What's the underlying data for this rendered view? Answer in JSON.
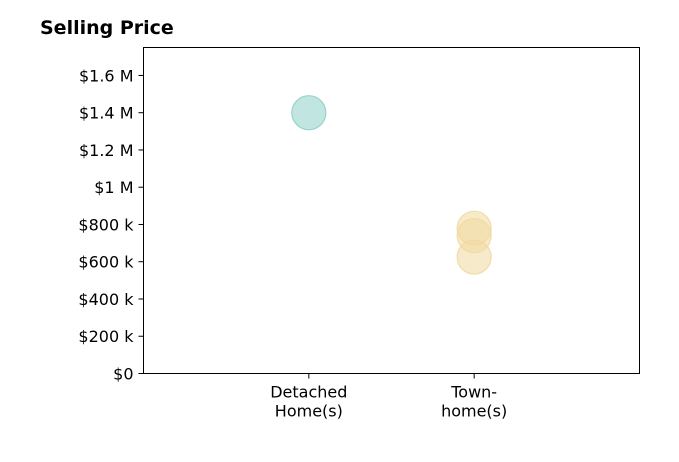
{
  "chart_data": {
    "type": "scatter",
    "title": "Selling Price",
    "xlabel": "",
    "ylabel": "",
    "categories": [
      [
        "Detached",
        "Home(s)"
      ],
      [
        "Town-",
        "home(s)"
      ]
    ],
    "y_ticks": [
      {
        "value": 0,
        "label": "$0"
      },
      {
        "value": 200000,
        "label": "$200 k"
      },
      {
        "value": 400000,
        "label": "$400 k"
      },
      {
        "value": 600000,
        "label": "$600 k"
      },
      {
        "value": 800000,
        "label": "$800 k"
      },
      {
        "value": 1000000,
        "label": "$1 M"
      },
      {
        "value": 1200000,
        "label": "$1.2 M"
      },
      {
        "value": 1400000,
        "label": "$1.4 M"
      },
      {
        "value": 1600000,
        "label": "$1.6 M"
      }
    ],
    "ylim": [
      0,
      1750000
    ],
    "xlim": [
      -1,
      2
    ],
    "grid": false,
    "points": [
      {
        "category": 0,
        "value": 1400000,
        "color": "#8ecfc9"
      },
      {
        "category": 1,
        "value": 780000,
        "color": "#f1d9a0"
      },
      {
        "category": 1,
        "value": 740000,
        "color": "#f1d9a0"
      },
      {
        "category": 1,
        "value": 625000,
        "color": "#f1d9a0"
      }
    ]
  }
}
